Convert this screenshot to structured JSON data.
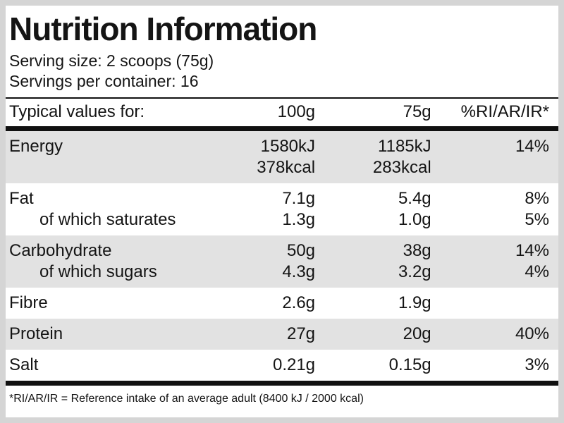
{
  "colors": {
    "page_background": "#d5d5d5",
    "card_background": "#ffffff",
    "stripe_background": "#e2e2e2",
    "text": "#141414",
    "rule": "#111111"
  },
  "header": {
    "title": "Nutrition Information",
    "serving_size": "Serving size: 2 scoops (75g)",
    "servings_per_container": "Servings per container: 16"
  },
  "table": {
    "headers": [
      "Typical values for:",
      "100g",
      "75g",
      "%RI/AR/IR*"
    ],
    "rows": [
      {
        "cells": [
          "Energy",
          "1580kJ",
          "1185kJ",
          "14%"
        ]
      },
      {
        "cells": [
          "",
          "378kcal",
          "283kcal",
          ""
        ]
      },
      {
        "cells": [
          "Fat",
          "7.1g",
          "5.4g",
          "8%"
        ]
      },
      {
        "cells": [
          "of which saturates",
          "1.3g",
          "1.0g",
          "5%"
        ]
      },
      {
        "cells": [
          "Carbohydrate",
          "50g",
          "38g",
          "14%"
        ]
      },
      {
        "cells": [
          "of which sugars",
          "4.3g",
          "3.2g",
          "4%"
        ]
      },
      {
        "cells": [
          "Fibre",
          "2.6g",
          "1.9g",
          ""
        ]
      },
      {
        "cells": [
          "Protein",
          "27g",
          "20g",
          "40%"
        ]
      },
      {
        "cells": [
          "Salt",
          "0.21g",
          "0.15g",
          "3%"
        ]
      }
    ]
  },
  "footnote": "*RI/AR/IR = Reference intake of an average adult (8400 kJ / 2000 kcal)"
}
